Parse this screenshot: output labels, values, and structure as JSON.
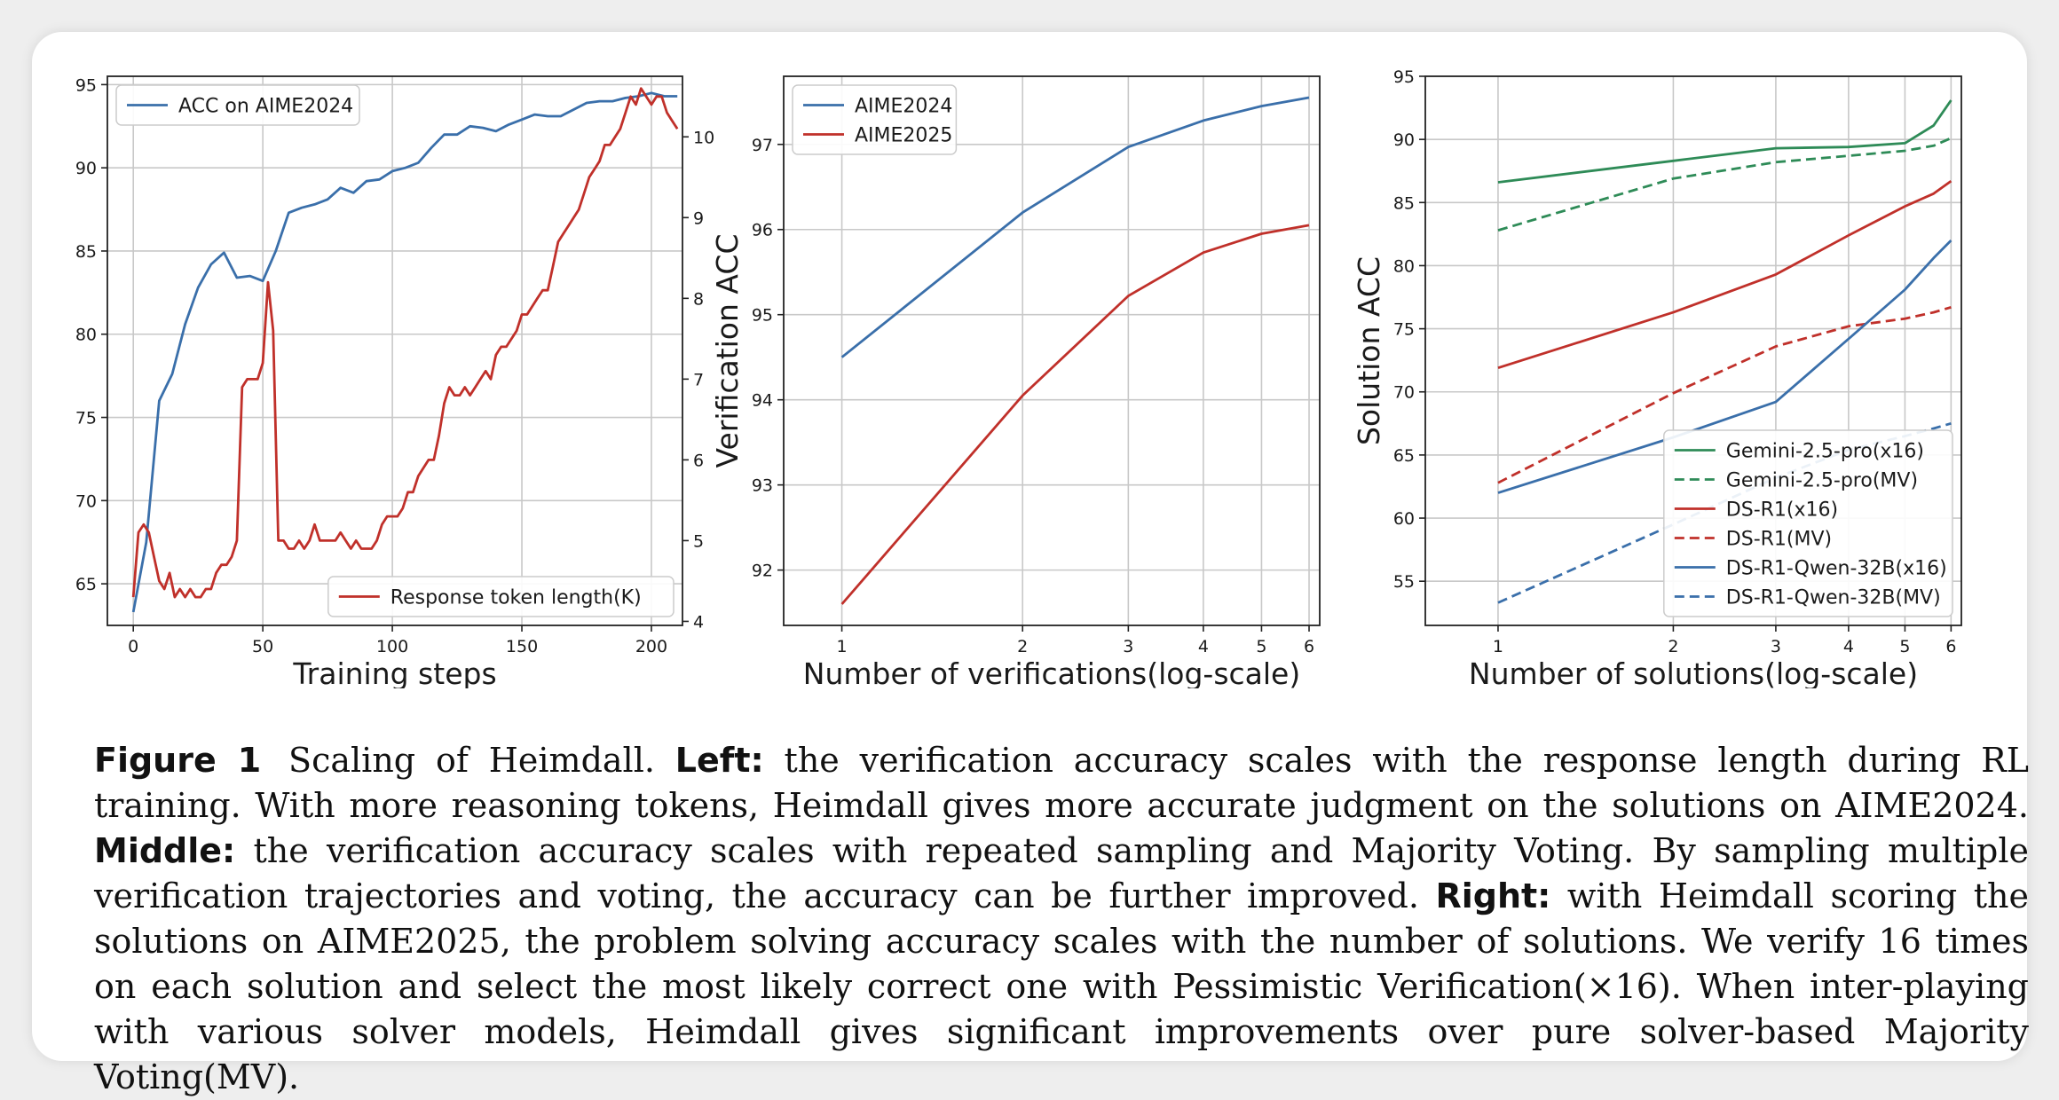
{
  "chart_data": [
    {
      "type": "line",
      "xlabel": "Training steps",
      "xlim": [
        -10,
        212
      ],
      "xticks": [
        0,
        50,
        100,
        150,
        200
      ],
      "ylim": [
        62.5,
        95.5
      ],
      "yticks": [
        65,
        70,
        75,
        80,
        85,
        90,
        95
      ],
      "y2lim": [
        3.95,
        10.75
      ],
      "y2ticks": [
        4,
        5,
        6,
        7,
        8,
        9,
        10
      ],
      "grid": true,
      "series": [
        {
          "name": "ACC on AIME2024",
          "axis": "left",
          "color": "#3a6faa",
          "legend": "upper-left",
          "x": [
            0,
            5,
            10,
            15,
            20,
            25,
            30,
            35,
            40,
            45,
            50,
            55,
            60,
            65,
            70,
            75,
            80,
            85,
            90,
            95,
            100,
            105,
            110,
            115,
            120,
            125,
            130,
            135,
            140,
            145,
            150,
            155,
            160,
            165,
            170,
            175,
            180,
            185,
            190,
            195,
            200,
            205,
            210
          ],
          "y": [
            63.3,
            67.5,
            76.0,
            77.6,
            80.6,
            82.8,
            84.2,
            84.9,
            83.4,
            83.5,
            83.2,
            85.0,
            87.3,
            87.6,
            87.8,
            88.1,
            88.8,
            88.5,
            89.2,
            89.3,
            89.8,
            90.0,
            90.3,
            91.2,
            92.0,
            92.0,
            92.5,
            92.4,
            92.2,
            92.6,
            92.9,
            93.2,
            93.1,
            93.1,
            93.5,
            93.9,
            94.0,
            94.0,
            94.2,
            94.3,
            94.5,
            94.3,
            94.3
          ]
        },
        {
          "name": "Response token length(K)",
          "axis": "right",
          "color": "#c0302a",
          "legend": "lower-right",
          "x": [
            0,
            2,
            4,
            6,
            8,
            10,
            12,
            14,
            16,
            18,
            20,
            22,
            24,
            26,
            28,
            30,
            32,
            34,
            36,
            38,
            40,
            42,
            44,
            46,
            48,
            50,
            52,
            54,
            56,
            58,
            60,
            62,
            64,
            66,
            68,
            70,
            72,
            74,
            76,
            78,
            80,
            82,
            84,
            86,
            88,
            90,
            92,
            94,
            96,
            98,
            100,
            102,
            104,
            106,
            108,
            110,
            112,
            114,
            116,
            118,
            120,
            122,
            124,
            126,
            128,
            130,
            132,
            134,
            136,
            138,
            140,
            142,
            144,
            146,
            148,
            150,
            152,
            154,
            156,
            158,
            160,
            162,
            164,
            166,
            168,
            170,
            172,
            174,
            176,
            178,
            180,
            182,
            184,
            186,
            188,
            190,
            192,
            194,
            196,
            198,
            200,
            202,
            204,
            206,
            208,
            210
          ],
          "y": [
            4.3,
            5.1,
            5.2,
            5.1,
            4.8,
            4.5,
            4.4,
            4.6,
            4.3,
            4.4,
            4.3,
            4.4,
            4.3,
            4.3,
            4.4,
            4.4,
            4.6,
            4.7,
            4.7,
            4.8,
            5.0,
            6.9,
            7.0,
            7.0,
            7.0,
            7.2,
            8.2,
            7.6,
            5.0,
            5.0,
            4.9,
            4.9,
            5.0,
            4.9,
            5.0,
            5.2,
            5.0,
            5.0,
            5.0,
            5.0,
            5.1,
            5.0,
            4.9,
            5.0,
            4.9,
            4.9,
            4.9,
            5.0,
            5.2,
            5.3,
            5.3,
            5.3,
            5.4,
            5.6,
            5.6,
            5.8,
            5.9,
            6.0,
            6.0,
            6.3,
            6.7,
            6.9,
            6.8,
            6.8,
            6.9,
            6.8,
            6.9,
            7.0,
            7.1,
            7.0,
            7.3,
            7.4,
            7.4,
            7.5,
            7.6,
            7.8,
            7.8,
            7.9,
            8.0,
            8.1,
            8.1,
            8.4,
            8.7,
            8.8,
            8.9,
            9.0,
            9.1,
            9.3,
            9.5,
            9.6,
            9.7,
            9.9,
            9.9,
            10.0,
            10.1,
            10.3,
            10.5,
            10.4,
            10.6,
            10.5,
            10.4,
            10.5,
            10.5,
            10.3,
            10.2,
            10.1
          ]
        }
      ]
    },
    {
      "type": "line",
      "xlabel": "Number of verifications(log-scale)",
      "ylabel": "Verification ACC",
      "xscale": "log",
      "xlim": [
        0.8,
        6.25
      ],
      "xticks": [
        1,
        2,
        3,
        4,
        5,
        6
      ],
      "ylim": [
        91.35,
        97.8
      ],
      "yticks": [
        92,
        93,
        94,
        95,
        96,
        97
      ],
      "grid": true,
      "legend": "upper-left",
      "series": [
        {
          "name": "AIME2024",
          "color": "#3a6faa",
          "x": [
            1,
            2,
            3,
            4,
            5,
            6
          ],
          "y": [
            94.5,
            96.2,
            96.97,
            97.28,
            97.45,
            97.55
          ]
        },
        {
          "name": "AIME2025",
          "color": "#c0302a",
          "x": [
            1,
            2,
            3,
            4,
            5,
            6
          ],
          "y": [
            91.6,
            94.05,
            95.22,
            95.73,
            95.95,
            96.05
          ]
        }
      ]
    },
    {
      "type": "line",
      "xlabel": "Number of solutions(log-scale)",
      "ylabel": "Solution ACC",
      "xscale": "log",
      "xlim": [
        0.75,
        6.25
      ],
      "xticks": [
        1,
        2,
        3,
        4,
        5,
        6
      ],
      "ylim": [
        51.5,
        95.0
      ],
      "yticks": [
        55,
        60,
        65,
        70,
        75,
        80,
        85,
        90,
        95
      ],
      "grid": true,
      "legend": "lower-right",
      "series": [
        {
          "name": "Gemini-2.5-pro(x16)",
          "color": "#2e8b57",
          "dash": false,
          "x": [
            1,
            2,
            3,
            4,
            5,
            5.6,
            6
          ],
          "y": [
            86.6,
            88.3,
            89.3,
            89.4,
            89.7,
            91.1,
            93.1
          ]
        },
        {
          "name": "Gemini-2.5-pro(MV)",
          "color": "#2e8b57",
          "dash": true,
          "x": [
            1,
            2,
            3,
            4,
            5,
            5.6,
            6
          ],
          "y": [
            82.8,
            86.9,
            88.2,
            88.7,
            89.1,
            89.5,
            90.1
          ]
        },
        {
          "name": "DS-R1(x16)",
          "color": "#c0302a",
          "dash": false,
          "x": [
            1,
            2,
            3,
            4,
            5,
            5.6,
            6
          ],
          "y": [
            71.9,
            76.3,
            79.3,
            82.4,
            84.7,
            85.7,
            86.7
          ]
        },
        {
          "name": "DS-R1(MV)",
          "color": "#c0302a",
          "dash": true,
          "x": [
            1,
            2,
            3,
            4,
            5,
            5.6,
            6
          ],
          "y": [
            62.8,
            69.9,
            73.6,
            75.2,
            75.8,
            76.3,
            76.7
          ]
        },
        {
          "name": "DS-R1-Qwen-32B(x16)",
          "color": "#3a6faa",
          "dash": false,
          "x": [
            1,
            2,
            3,
            4,
            5,
            5.6,
            6
          ],
          "y": [
            62.0,
            66.4,
            69.2,
            74.2,
            78.1,
            80.6,
            82.0
          ]
        },
        {
          "name": "DS-R1-Qwen-32B(MV)",
          "color": "#3a6faa",
          "dash": true,
          "x": [
            1,
            2,
            3,
            4,
            5,
            5.6,
            6
          ],
          "y": [
            53.3,
            59.5,
            63.2,
            65.4,
            66.5,
            67.1,
            67.5
          ]
        }
      ]
    }
  ],
  "caption": {
    "label": "Figure 1",
    "title": "Scaling of Heimdall.",
    "left_label": "Left:",
    "left_text": "the verification accuracy scales with the response length during RL training. With more reasoning tokens, Heimdall gives more accurate judgment on the solutions on AIME2024.",
    "middle_label": "Middle:",
    "middle_text": "the verification accuracy scales with repeated sampling and Majority Voting. By sampling multiple verification trajectories and voting, the accuracy can be further improved.",
    "right_label": "Right:",
    "right_text": "with Heimdall scoring the solutions on AIME2025, the problem solving accuracy scales with the number of solutions. We verify 16 times on each solution and select the most likely correct one with Pessimistic Verification(×16). When inter-playing with various solver models, Heimdall gives significant improvements over pure solver-based Majority Voting(MV)."
  }
}
